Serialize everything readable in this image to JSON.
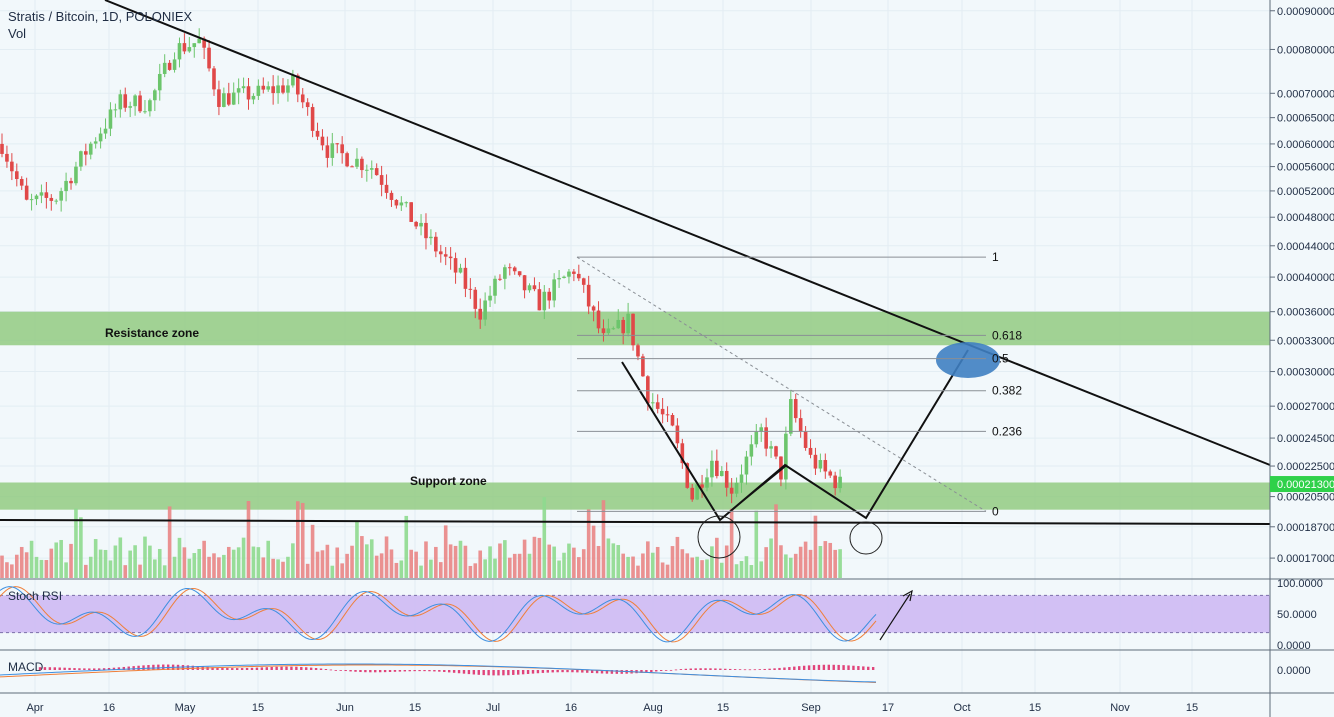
{
  "header": {
    "title": "Stratis / Bitcoin, 1D, POLONIEX",
    "subtitle": "Vol"
  },
  "colors": {
    "background": "#f2f8fb",
    "up": "#6cc56c",
    "down": "#e04848",
    "vol_up": "#8ed98e",
    "vol_down": "#e98585",
    "zone": "#8cc87a",
    "stoch_band": "#cdb6f2",
    "stoch_k": "#3d8fe0",
    "stoch_d": "#ef7f3a",
    "macd_hist": "#e0447a",
    "macd_line": "#3d8fe0",
    "signal_line": "#ef7f3a",
    "ellipse": "#3f7fc2",
    "last_price": "#2fd14a"
  },
  "chart_data": {
    "type": "candlestick",
    "price_scale": "log",
    "ylim": [
      0.00016,
      0.00093
    ],
    "y_ticks": [
      "0.00090000",
      "0.00080000",
      "0.00070000",
      "0.00065000",
      "0.00060000",
      "0.00056000",
      "0.00052000",
      "0.00048000",
      "0.00044000",
      "0.00040000",
      "0.00036000",
      "0.00033000",
      "0.00030000",
      "0.00027000",
      "0.00024500",
      "0.00022500",
      "0.00020500",
      "0.00018700",
      "0.00017000"
    ],
    "last_price_label": "0.00021300",
    "x_ticks": [
      "Apr",
      "16",
      "May",
      "15",
      "Jun",
      "15",
      "Jul",
      "16",
      "Aug",
      "15",
      "Sep",
      "17",
      "Oct",
      "15",
      "Nov",
      "15"
    ],
    "trend": [
      {
        "date": "2017-03-27",
        "close": 0.0006
      },
      {
        "date": "2017-04-01",
        "close": 0.0005
      },
      {
        "date": "2017-04-07",
        "close": 0.00051
      },
      {
        "date": "2017-04-14",
        "close": 0.0006
      },
      {
        "date": "2017-04-20",
        "close": 0.00068
      },
      {
        "date": "2017-04-26",
        "close": 0.00068
      },
      {
        "date": "2017-05-01",
        "close": 0.0008
      },
      {
        "date": "2017-05-06",
        "close": 0.00082
      },
      {
        "date": "2017-05-10",
        "close": 0.00069
      },
      {
        "date": "2017-05-18",
        "close": 0.0007
      },
      {
        "date": "2017-05-25",
        "close": 0.00072
      },
      {
        "date": "2017-06-01",
        "close": 0.00059
      },
      {
        "date": "2017-06-10",
        "close": 0.00056
      },
      {
        "date": "2017-06-20",
        "close": 0.00046
      },
      {
        "date": "2017-06-28",
        "close": 0.0004
      },
      {
        "date": "2017-07-02",
        "close": 0.00036
      },
      {
        "date": "2017-07-07",
        "close": 0.00041
      },
      {
        "date": "2017-07-14",
        "close": 0.00037
      },
      {
        "date": "2017-07-21",
        "close": 0.00041
      },
      {
        "date": "2017-07-27",
        "close": 0.00033
      },
      {
        "date": "2017-08-01",
        "close": 0.00035
      },
      {
        "date": "2017-08-05",
        "close": 0.00028
      },
      {
        "date": "2017-08-10",
        "close": 0.00025
      },
      {
        "date": "2017-08-14",
        "close": 0.000205
      },
      {
        "date": "2017-08-18",
        "close": 0.00023
      },
      {
        "date": "2017-08-22",
        "close": 0.00021
      },
      {
        "date": "2017-08-28",
        "close": 0.00025
      },
      {
        "date": "2017-09-01",
        "close": 0.00022
      },
      {
        "date": "2017-09-03",
        "close": 0.00027
      },
      {
        "date": "2017-09-07",
        "close": 0.00023
      },
      {
        "date": "2017-09-10",
        "close": 0.00022
      },
      {
        "date": "2017-09-13",
        "close": 0.000213
      }
    ],
    "fib_levels": [
      {
        "label": "1",
        "value": 0.000425
      },
      {
        "label": "0.618",
        "value": 0.000335
      },
      {
        "label": "0.5",
        "value": 0.000312
      },
      {
        "label": "0.382",
        "value": 0.000283
      },
      {
        "label": "0.236",
        "value": 0.00025
      },
      {
        "label": "0",
        "value": 0.000196
      }
    ],
    "zones": [
      {
        "label": "Resistance zone",
        "from": 0.000325,
        "to": 0.00036
      },
      {
        "label": "Support zone",
        "from": 0.000197,
        "to": 0.000214
      }
    ],
    "indicators": [
      {
        "name": "Stoch RSI",
        "ticks": [
          "100.0000",
          "50.0000",
          "0.0000"
        ],
        "band": [
          20,
          80
        ]
      },
      {
        "name": "MACD",
        "ticks": [
          "0.0000"
        ]
      }
    ]
  }
}
